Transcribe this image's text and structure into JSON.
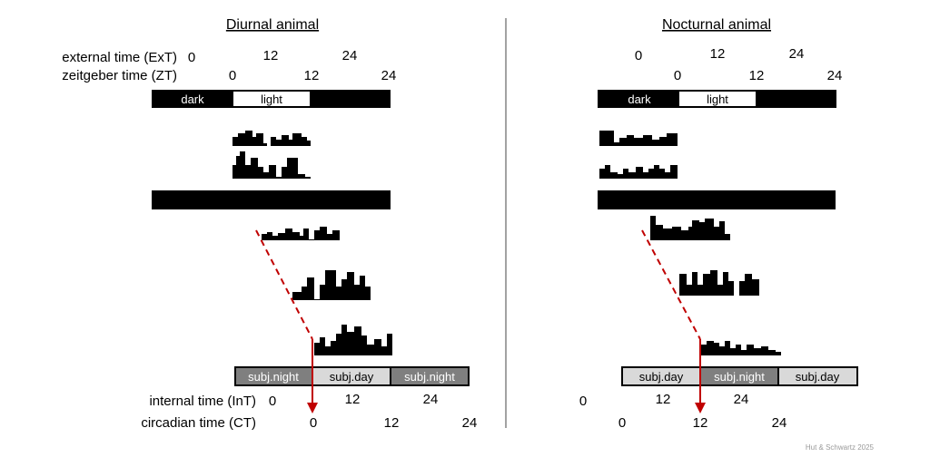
{
  "diurnal": {
    "title": "Diurnal animal",
    "external_time_label": "external time (ExT)",
    "zeitgeber_time_label": "zeitgeber time (ZT)",
    "ext_ticks": [
      "0",
      "12",
      "24"
    ],
    "zt_ticks": [
      "0",
      "12",
      "24"
    ],
    "dark_label": "dark",
    "light_label": "light",
    "subjective": [
      "subj.night",
      "subj.day",
      "subj.night"
    ],
    "internal_time_label": "internal time (InT)",
    "circadian_time_label": "circadian time (CT)",
    "int_ticks": [
      "0",
      "12",
      "24"
    ],
    "ct_ticks": [
      "0",
      "12",
      "24"
    ]
  },
  "nocturnal": {
    "title": "Nocturnal animal",
    "ext_ticks": [
      "0",
      "12",
      "24"
    ],
    "zt_ticks": [
      "0",
      "12",
      "24"
    ],
    "dark_label": "dark",
    "light_label": "light",
    "subjective": [
      "subj.day",
      "subj.night",
      "subj.day"
    ],
    "int_ticks": [
      "0",
      "12",
      "24"
    ],
    "ct_ticks": [
      "0",
      "12",
      "24"
    ]
  },
  "credit": "Hut & Schwartz 2025",
  "colors": {
    "activity": "#000000",
    "arrow": "#c00000",
    "dashed": "#c00000",
    "subj_night_fill": "#7f7f7f",
    "subj_day_fill": "#d9d9d9",
    "divider": "#444444"
  }
}
